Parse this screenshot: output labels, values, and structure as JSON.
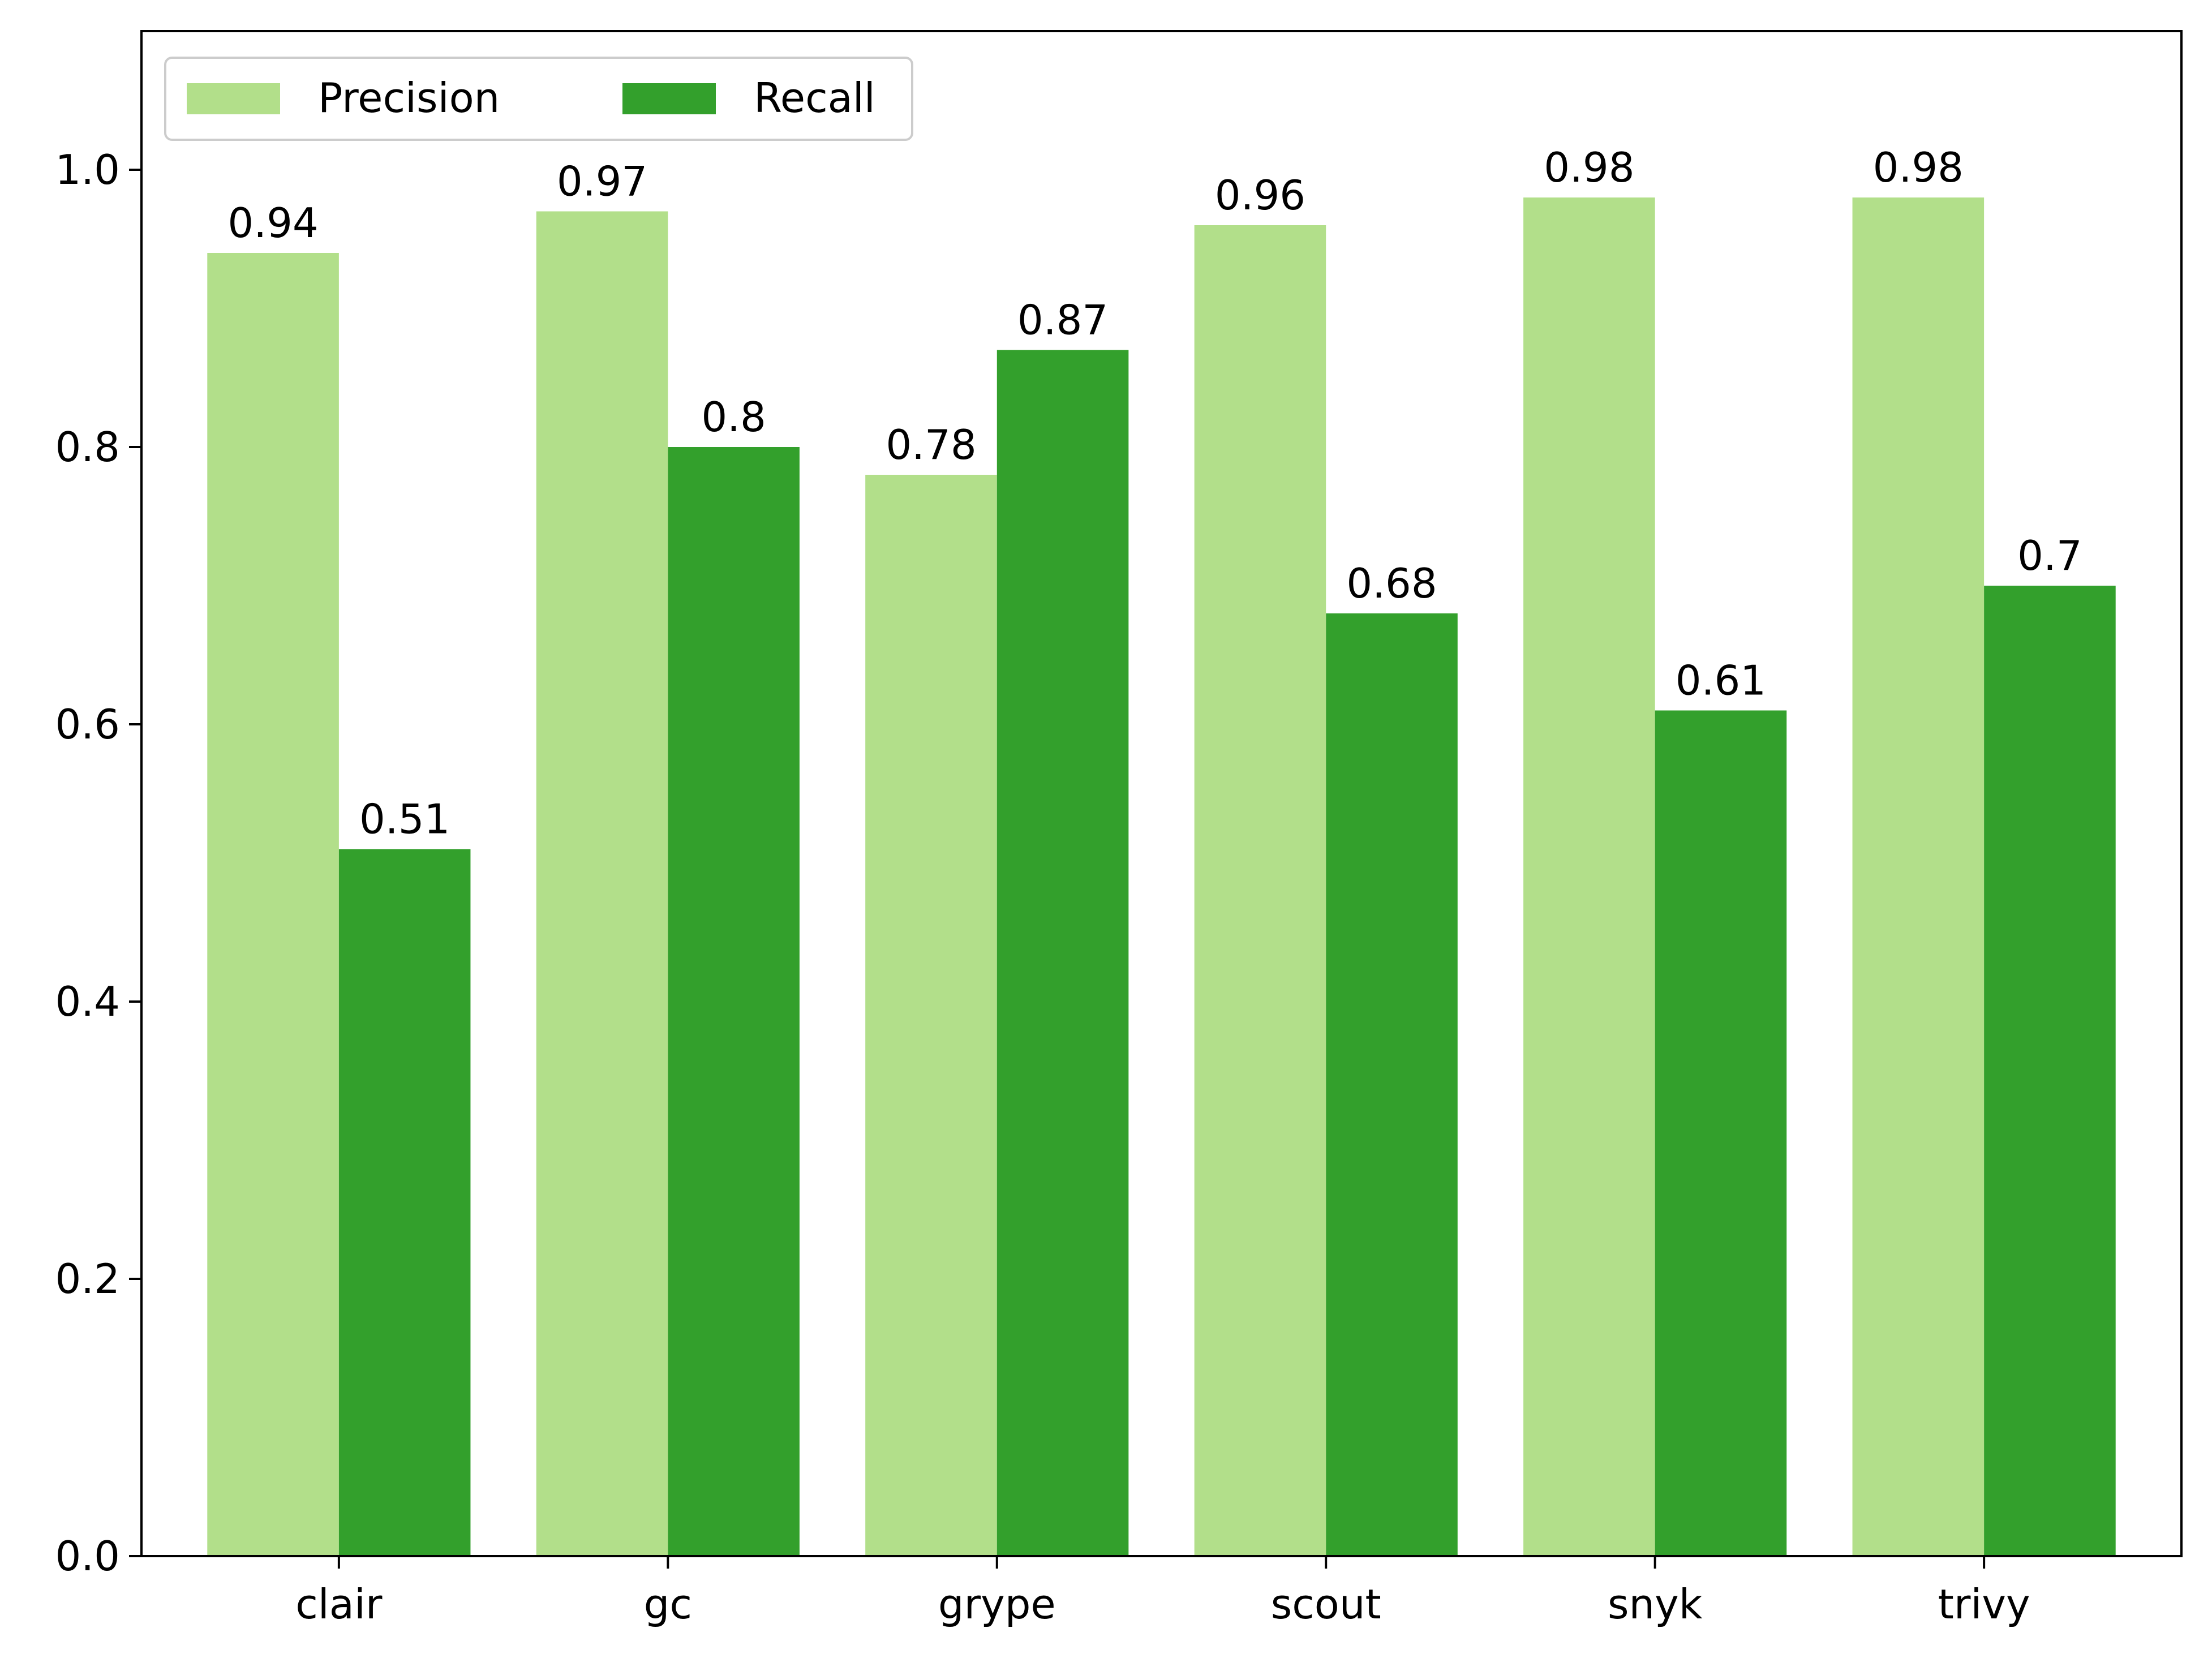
{
  "chart_data": {
    "type": "bar",
    "title": "",
    "xlabel": "",
    "ylabel": "",
    "categories": [
      "clair",
      "gc",
      "grype",
      "scout",
      "snyk",
      "trivy"
    ],
    "series": [
      {
        "name": "Precision",
        "values": [
          0.94,
          0.97,
          0.78,
          0.96,
          0.98,
          0.98
        ],
        "color": "#b2df8a"
      },
      {
        "name": "Recall",
        "values": [
          0.51,
          0.8,
          0.87,
          0.68,
          0.61,
          0.7
        ],
        "color": "#33a02c"
      }
    ],
    "ylim": [
      0,
      1.1
    ],
    "yticks": [
      0.0,
      0.2,
      0.4,
      0.6,
      0.8,
      1.0
    ],
    "ytick_labels": [
      "0.0",
      "0.2",
      "0.4",
      "0.6",
      "0.8",
      "1.0"
    ],
    "data_labels": [
      [
        "0.94",
        "0.97",
        "0.78",
        "0.96",
        "0.98",
        "0.98"
      ],
      [
        "0.51",
        "0.8",
        "0.87",
        "0.68",
        "0.61",
        "0.7"
      ]
    ],
    "grid": false,
    "legend": {
      "position": "top-left",
      "ncol": 2
    }
  }
}
